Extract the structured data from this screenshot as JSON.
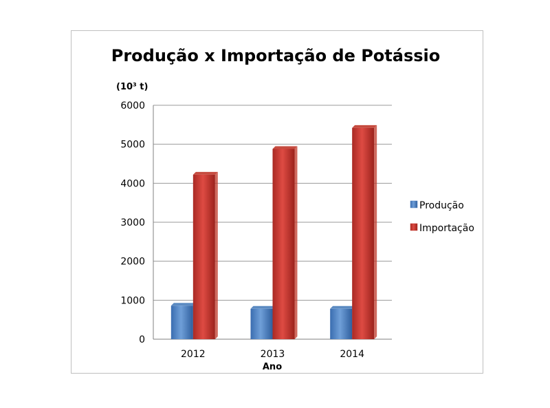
{
  "chart_data": {
    "type": "bar",
    "title": "Produção x Importação de Potássio",
    "unit_label": "(10³ t)",
    "xlabel": "Ano",
    "ylabel": "",
    "categories": [
      "2012",
      "2013",
      "2014"
    ],
    "series": [
      {
        "name": "Produção",
        "values": [
          860,
          780,
          780
        ],
        "color": "#4a7ebb"
      },
      {
        "name": "Importação",
        "values": [
          4220,
          4880,
          5420
        ],
        "color": "#c0392b"
      }
    ],
    "ylim": [
      0,
      6000
    ],
    "yticks": [
      "0",
      "1000",
      "2000",
      "3000",
      "4000",
      "5000",
      "6000"
    ],
    "grid": true,
    "legend": "right",
    "bar_style": "3d"
  }
}
